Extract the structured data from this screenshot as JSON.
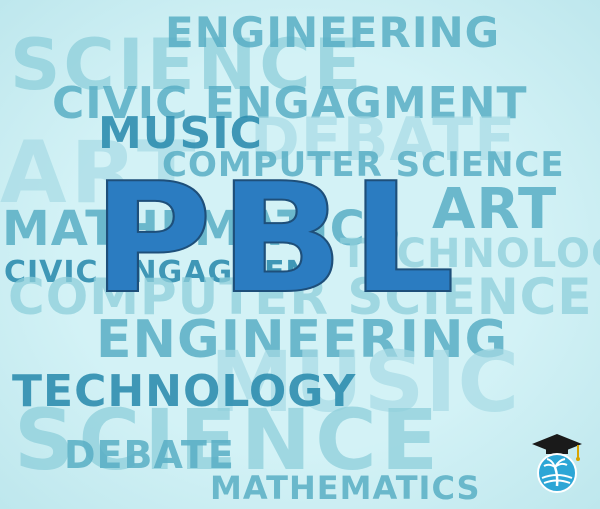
{
  "main_title": "PBL",
  "background_words": [
    "ENGINEERING",
    "SCIENCE",
    "CIVIC ENGAGMENT",
    "MUSIC",
    "DEBATE",
    "COMPUTER SCIENCE",
    "ART",
    "ART",
    "MATHEMATICS",
    "TECHNOLOGY",
    "CIVIC ENGAGMENT",
    "COMPUTER SCIENCE",
    "ENGINEERING",
    "MUSIC",
    "TECHNOLOGY",
    "SCIENCE",
    "DEBATE",
    "MATHEMATICS"
  ],
  "colors": {
    "background": "#d3f2f6",
    "title_fill": "#2b7cc1",
    "title_outline": "#1e4f7a",
    "word_light": "#8ecfdb",
    "word_mid": "#59afc5",
    "word_dark": "#2f8eb0"
  },
  "logo": {
    "icon": "graduation-cap-palm-tree-icon"
  }
}
